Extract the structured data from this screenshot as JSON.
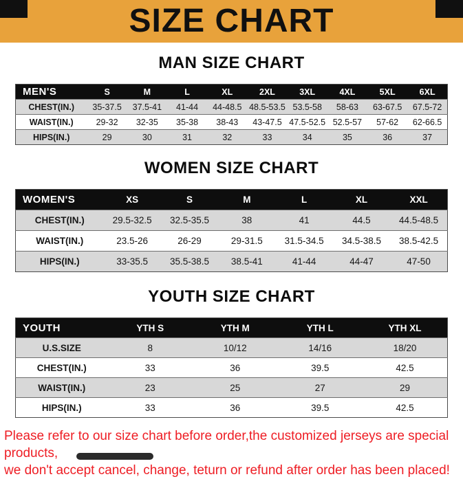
{
  "banner": {
    "title": "SIZE CHART"
  },
  "sections": [
    {
      "heading": "MAN SIZE CHART",
      "table": {
        "header": [
          "MEN'S",
          "S",
          "M",
          "L",
          "XL",
          "2XL",
          "3XL",
          "4XL",
          "5XL",
          "6XL"
        ],
        "rows": [
          [
            "CHEST(IN.)",
            "35-37.5",
            "37.5-41",
            "41-44",
            "44-48.5",
            "48.5-53.5",
            "53.5-58",
            "58-63",
            "63-67.5",
            "67.5-72"
          ],
          [
            "WAIST(IN.)",
            "29-32",
            "32-35",
            "35-38",
            "38-43",
            "43-47.5",
            "47.5-52.5",
            "52.5-57",
            "57-62",
            "62-66.5"
          ],
          [
            "HIPS(IN.)",
            "29",
            "30",
            "31",
            "32",
            "33",
            "34",
            "35",
            "36",
            "37"
          ]
        ]
      }
    },
    {
      "heading": "WOMEN SIZE CHART",
      "table": {
        "header": [
          "WOMEN'S",
          "XS",
          "S",
          "M",
          "L",
          "XL",
          "XXL"
        ],
        "rows": [
          [
            "CHEST(IN.)",
            "29.5-32.5",
            "32.5-35.5",
            "38",
            "41",
            "44.5",
            "44.5-48.5"
          ],
          [
            "WAIST(IN.)",
            "23.5-26",
            "26-29",
            "29-31.5",
            "31.5-34.5",
            "34.5-38.5",
            "38.5-42.5"
          ],
          [
            "HIPS(IN.)",
            "33-35.5",
            "35.5-38.5",
            "38.5-41",
            "41-44",
            "44-47",
            "47-50"
          ]
        ]
      }
    },
    {
      "heading": "YOUTH SIZE CHART",
      "table": {
        "header": [
          "YOUTH",
          "YTH S",
          "YTH M",
          "YTH L",
          "YTH XL"
        ],
        "rows": [
          [
            "U.S.SIZE",
            "8",
            "10/12",
            "14/16",
            "18/20"
          ],
          [
            "CHEST(IN.)",
            "33",
            "36",
            "39.5",
            "42.5"
          ],
          [
            "WAIST(IN.)",
            "23",
            "25",
            "27",
            "29"
          ],
          [
            "HIPS(IN.)",
            "33",
            "36",
            "39.5",
            "42.5"
          ]
        ]
      }
    }
  ],
  "footer": {
    "line1": "Please refer to our size chart before order,the customized jerseys are special products,",
    "line2": "we don't accept cancel, change, teturn or refund after order has been placed!"
  },
  "colors": {
    "banner_bg": "#E8A23B",
    "table_header_bg": "#0E0E0E",
    "row_alt_bg": "#D8D8D8",
    "footer_text": "#EE1D24"
  }
}
